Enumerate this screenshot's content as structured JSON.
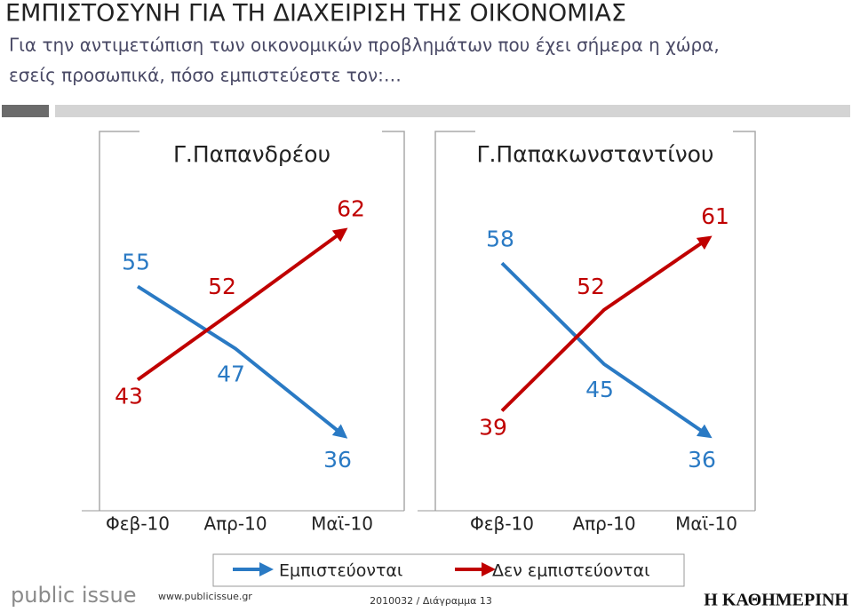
{
  "header": {
    "title": "ΕΜΠΙΣΤΟΣΥΝΗ ΓΙΑ ΤΗ ΔΙΑΧΕΙΡΙΣΗ ΤΗΣ ΟΙΚΟΝΟΜΙΑΣ",
    "subtitle": [
      "Για την αντιμετώπιση των οικονομικών προβλημάτων που έχει σήμερα η χώρα,",
      "εσείς προσωπικά, πόσο εμπιστεύεστε τον:…"
    ]
  },
  "chart_data": [
    {
      "type": "line",
      "title": "Γ.Παπανδρέου",
      "categories": [
        "Φεβ-10",
        "Απρ-10",
        "Μαϊ-10"
      ],
      "ylim": [
        33,
        65
      ],
      "series": [
        {
          "name": "Εμπιστεύονται",
          "color": "#2a7ac4",
          "values": [
            55,
            47,
            36
          ]
        },
        {
          "name": "Δεν εμπιστεύονται",
          "color": "#c00000",
          "values": [
            43,
            52,
            62
          ]
        }
      ]
    },
    {
      "type": "line",
      "title": "Γ.Παπακωνσταντίνου",
      "categories": [
        "Φεβ-10",
        "Απρ-10",
        "Μαϊ-10"
      ],
      "ylim": [
        33,
        65
      ],
      "series": [
        {
          "name": "Εμπιστεύονται",
          "color": "#2a7ac4",
          "values": [
            58,
            45,
            36
          ]
        },
        {
          "name": "Δεν εμπιστεύονται",
          "color": "#c00000",
          "values": [
            39,
            52,
            61
          ]
        }
      ]
    }
  ],
  "footer": {
    "brand": "public issue",
    "url": "www.publicissue.gr",
    "code": "2010032 / Διάγραμμα 13",
    "logo": "Η ΚΑΘΗΜΕΡΙΝΗ"
  }
}
